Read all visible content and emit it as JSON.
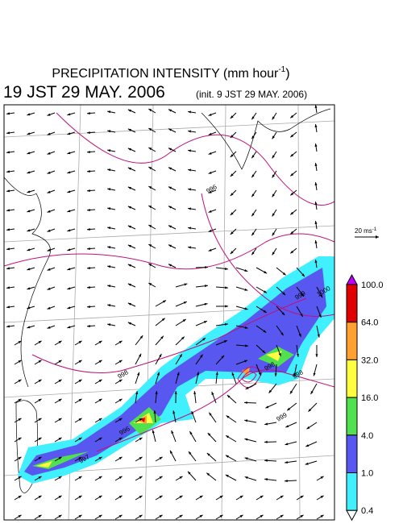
{
  "header": {
    "title": "PRECIPITATION INTENSITY (mm hour",
    "title_exponent": "-1",
    "title_close": ")",
    "valid_time": "19 JST 29 MAY. 2006",
    "init_time": "(init. 9 JST 29 MAY. 2006)"
  },
  "vector_scale": {
    "label": "20 ms",
    "exponent": "-1"
  },
  "colorbar": {
    "levels": [
      {
        "value": 100,
        "label": "100.0"
      },
      {
        "value": 64,
        "label": "64.0"
      },
      {
        "value": 32,
        "label": "32.0"
      },
      {
        "value": 16,
        "label": "16.0"
      },
      {
        "value": 4,
        "label": "4.0"
      },
      {
        "value": 1,
        "label": "1.0"
      },
      {
        "value": 0.4,
        "label": "0.4"
      }
    ],
    "colors": [
      "#c000ff",
      "#e00000",
      "#ffa030",
      "#ffff40",
      "#50e050",
      "#5858f0",
      "#40f0ff",
      "#ffffff"
    ]
  },
  "contour_labels": [
    "996",
    "998",
    "999",
    "1000",
    "998",
    "999",
    "996",
    "997",
    "998"
  ]
}
